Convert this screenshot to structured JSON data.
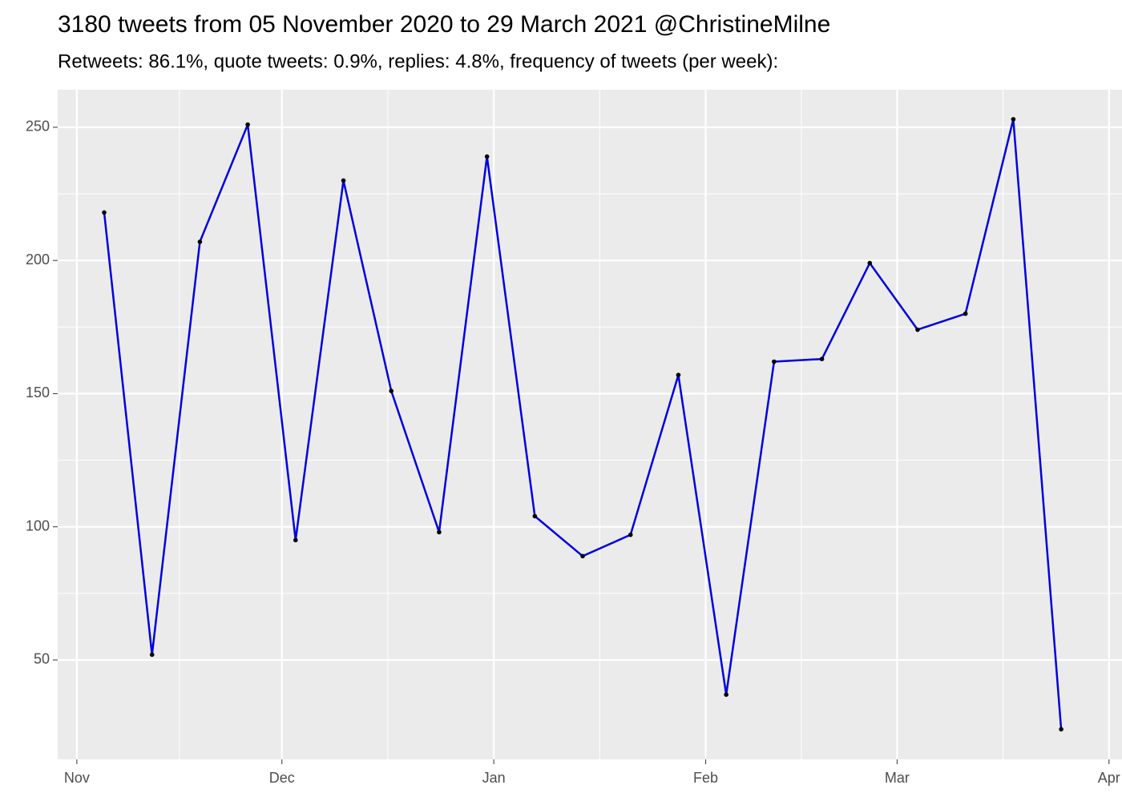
{
  "chart_data": {
    "type": "line",
    "title": "3180 tweets from 05 November 2020 to 29 March 2021 @ChristineMilne",
    "subtitle": "Retweets: 86.1%, quote tweets: 0.9%, replies: 4.8%, frequency of tweets (per week):",
    "x": [
      4,
      11,
      18,
      25,
      32,
      39,
      46,
      53,
      60,
      67,
      74,
      81,
      88,
      95,
      102,
      109,
      116,
      123,
      130,
      137,
      144
    ],
    "series": [
      {
        "name": "tweets",
        "color": "#0000e0",
        "values": [
          218,
          52,
          207,
          251,
          95,
          230,
          151,
          98,
          239,
          104,
          89,
          97,
          157,
          37,
          162,
          163,
          199,
          174,
          180,
          253,
          24
        ]
      }
    ],
    "point_color": "#000000",
    "xlim": [
      -2.8,
      152.9
    ],
    "xticks": [
      {
        "value": 0,
        "label": "Nov"
      },
      {
        "value": 30,
        "label": "Dec"
      },
      {
        "value": 61,
        "label": "Jan"
      },
      {
        "value": 92,
        "label": "Feb"
      },
      {
        "value": 120,
        "label": "Mar"
      },
      {
        "value": 151,
        "label": "Apr"
      }
    ],
    "ylim": [
      12.7,
      264.1
    ],
    "yticks": [
      50,
      100,
      150,
      200,
      250
    ],
    "grid": true,
    "minor_grid": true
  }
}
